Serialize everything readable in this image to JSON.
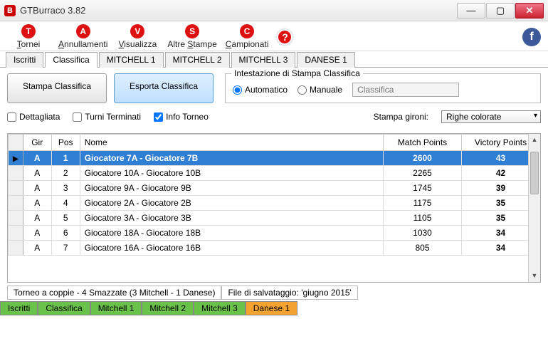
{
  "window": {
    "title": "GTBurraco 3.82",
    "icon_letter": "B"
  },
  "toolbar": {
    "items": [
      {
        "letter": "T",
        "label": "Tornei",
        "u": 0
      },
      {
        "letter": "A",
        "label": "Annullamenti",
        "u": 0
      },
      {
        "letter": "V",
        "label": "Visualizza",
        "u": 0
      },
      {
        "letter": "S",
        "label": "Altre Stampe",
        "u": 6
      },
      {
        "letter": "C",
        "label": "Campionati",
        "u": 0
      }
    ],
    "help": "?"
  },
  "tabs": [
    "Iscritti",
    "Classifica",
    "MITCHELL 1",
    "MITCHELL 2",
    "MITCHELL 3",
    "DANESE 1"
  ],
  "tabs_active": 1,
  "buttons": {
    "stampa": "Stampa Classifica",
    "esporta": "Esporta Classifica"
  },
  "group": {
    "legend": "Intestazione di Stampa Classifica",
    "r1": "Automatico",
    "r2": "Manuale",
    "placeholder": "Classifica"
  },
  "opts": {
    "dettagliata": "Dettagliata",
    "turni": "Turni Terminati",
    "info": "Info Torneo",
    "stampa_gironi_lbl": "Stampa gironi:",
    "combo": "Righe colorate"
  },
  "table": {
    "cols": [
      "Gir",
      "Pos",
      "Nome",
      "Match Points",
      "Victory Points"
    ],
    "rows": [
      {
        "gir": "A",
        "pos": "1",
        "nome": "Giocatore 7A - Giocatore 7B",
        "mp": "2600",
        "vp": "43",
        "sel": true
      },
      {
        "gir": "A",
        "pos": "2",
        "nome": "Giocatore 10A - Giocatore 10B",
        "mp": "2265",
        "vp": "42"
      },
      {
        "gir": "A",
        "pos": "3",
        "nome": "Giocatore 9A - Giocatore 9B",
        "mp": "1745",
        "vp": "39"
      },
      {
        "gir": "A",
        "pos": "4",
        "nome": "Giocatore 2A - Giocatore 2B",
        "mp": "1175",
        "vp": "35"
      },
      {
        "gir": "A",
        "pos": "5",
        "nome": "Giocatore 3A - Giocatore 3B",
        "mp": "1105",
        "vp": "35"
      },
      {
        "gir": "A",
        "pos": "6",
        "nome": "Giocatore 18A - Giocatore 18B",
        "mp": "1030",
        "vp": "34"
      },
      {
        "gir": "A",
        "pos": "7",
        "nome": "Giocatore 16A - Giocatore 16B",
        "mp": "805",
        "vp": "34"
      }
    ]
  },
  "status1": {
    "a": "Torneo a coppie - 4 Smazzate (3 Mitchell - 1 Danese)",
    "b": "File di salvataggio: 'giugno 2015'"
  },
  "status2": [
    "Iscritti",
    "Classifica",
    "Mitchell 1",
    "Mitchell 2",
    "Mitchell 3",
    "Danese 1"
  ],
  "status2_colors": [
    "green",
    "green",
    "green",
    "green",
    "green",
    "orange"
  ]
}
